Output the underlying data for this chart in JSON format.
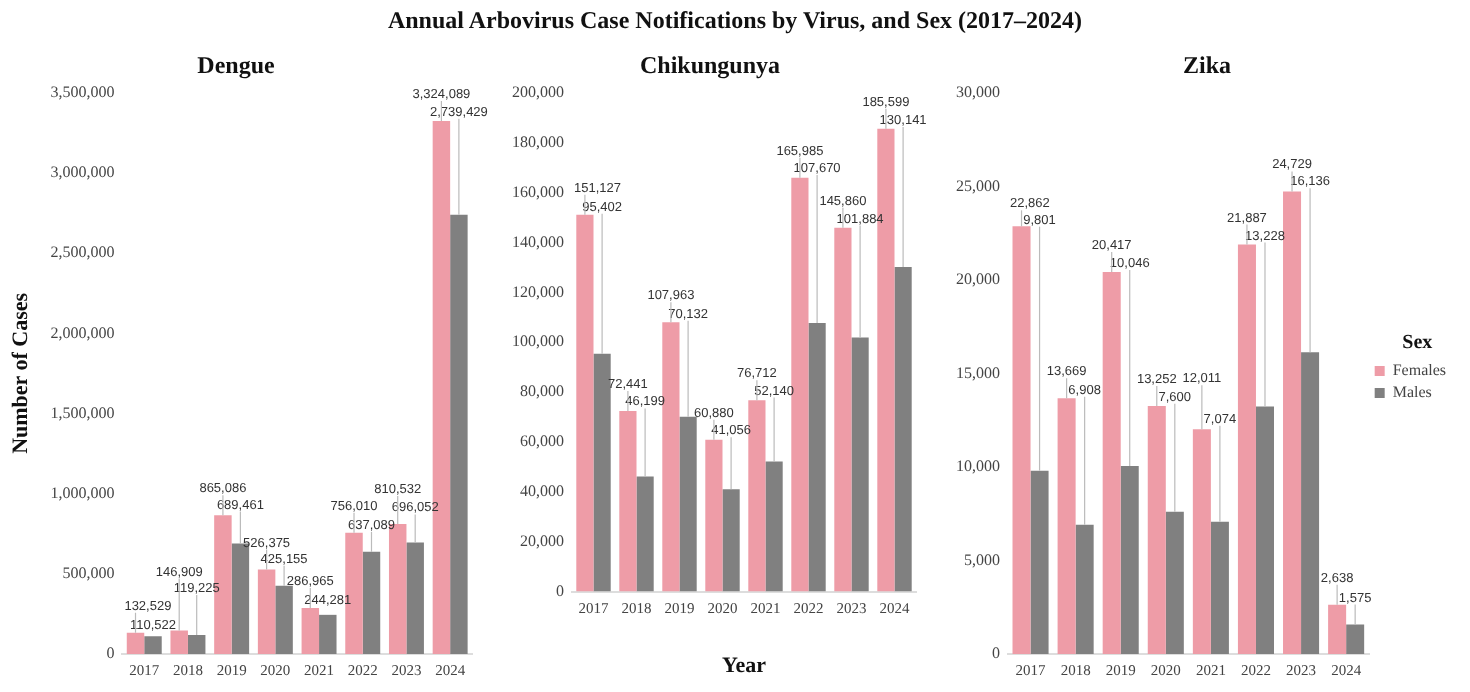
{
  "chart_data": [
    {
      "type": "bar",
      "title": "Annual Arbovirus Case Notifications by Virus, and Sex (2017–2024)",
      "subtitle": "Dengue",
      "ylabel": "Number of Cases",
      "categories": [
        "2017",
        "2018",
        "2019",
        "2020",
        "2021",
        "2022",
        "2023",
        "2024"
      ],
      "series": [
        {
          "color": "#ee9ca7",
          "values": [
            132529,
            146909,
            865086,
            526375,
            286965,
            756010,
            810532,
            3324089
          ],
          "value_labels": [
            "132,529",
            "146,909",
            "865,086",
            "526,375",
            "286,965",
            "756,010",
            "810,532",
            "3,324,089"
          ]
        },
        {
          "color": "#808080",
          "values": [
            110522,
            119225,
            689461,
            425155,
            244281,
            637089,
            696052,
            2739429
          ],
          "value_labels": [
            "110,522",
            "119,225",
            "689,461",
            "425,155",
            "244,281",
            "637,089",
            "696,052",
            "2,739,429"
          ]
        }
      ],
      "ylim": [
        0,
        3500000
      ],
      "yticks": [
        {
          "value": 0,
          "label": "0"
        },
        {
          "value": 500000,
          "label": "500,000"
        },
        {
          "value": 1000000,
          "label": "1,000,000"
        },
        {
          "value": 1500000,
          "label": "1,500,000"
        },
        {
          "value": 2000000,
          "label": "2,000,000"
        },
        {
          "value": 2500000,
          "label": "2,500,000"
        },
        {
          "value": 3000000,
          "label": "3,000,000"
        },
        {
          "value": 3500000,
          "label": "3,500,000"
        }
      ],
      "grid": false,
      "legend": false
    },
    {
      "type": "bar",
      "subtitle": "Chikungunya",
      "xlabel": "Year",
      "categories": [
        "2017",
        "2018",
        "2019",
        "2020",
        "2021",
        "2022",
        "2023",
        "2024"
      ],
      "series": [
        {
          "color": "#ee9ca7",
          "values": [
            151127,
            72441,
            107963,
            60880,
            76712,
            165985,
            145860,
            185599
          ],
          "value_labels": [
            "151,127",
            "72,441",
            "107,963",
            "60,880",
            "76,712",
            "165,985",
            "145,860",
            "185,599"
          ]
        },
        {
          "color": "#808080",
          "values": [
            95402,
            46199,
            70132,
            41056,
            52140,
            107670,
            101884,
            130141
          ],
          "value_labels": [
            "95,402",
            "46,199",
            "70,132",
            "41,056",
            "52,140",
            "107,670",
            "101,884",
            "130,141"
          ]
        }
      ],
      "ylim": [
        0,
        200000
      ],
      "yticks": [
        {
          "value": 0,
          "label": "0"
        },
        {
          "value": 20000,
          "label": "20,000"
        },
        {
          "value": 40000,
          "label": "40,000"
        },
        {
          "value": 60000,
          "label": "60,000"
        },
        {
          "value": 80000,
          "label": "80,000"
        },
        {
          "value": 100000,
          "label": "100,000"
        },
        {
          "value": 120000,
          "label": "120,000"
        },
        {
          "value": 140000,
          "label": "140,000"
        },
        {
          "value": 160000,
          "label": "160,000"
        },
        {
          "value": 180000,
          "label": "180,000"
        },
        {
          "value": 200000,
          "label": "200,000"
        }
      ],
      "grid": false,
      "legend": false
    },
    {
      "type": "bar",
      "subtitle": "Zika",
      "legend_title": "Sex",
      "categories": [
        "2017",
        "2018",
        "2019",
        "2020",
        "2021",
        "2022",
        "2023",
        "2024"
      ],
      "series": [
        {
          "name": "Females",
          "color": "#ee9ca7",
          "values": [
            22862,
            13669,
            20417,
            13252,
            12011,
            21887,
            24729,
            2638
          ],
          "value_labels": [
            "22,862",
            "13,669",
            "20,417",
            "13,252",
            "12,011",
            "21,887",
            "24,729",
            "2,638"
          ]
        },
        {
          "name": "Males",
          "color": "#808080",
          "values": [
            9801,
            6908,
            10046,
            7600,
            7074,
            13228,
            16136,
            1575
          ],
          "value_labels": [
            "9,801",
            "6,908",
            "10,046",
            "7,600",
            "7,074",
            "13,228",
            "16,136",
            "1,575"
          ]
        }
      ],
      "ylim": [
        0,
        30000
      ],
      "yticks": [
        {
          "value": 0,
          "label": "0"
        },
        {
          "value": 5000,
          "label": "5,000"
        },
        {
          "value": 10000,
          "label": "10,000"
        },
        {
          "value": 15000,
          "label": "15,000"
        },
        {
          "value": 20000,
          "label": "20,000"
        },
        {
          "value": 25000,
          "label": "25,000"
        },
        {
          "value": 30000,
          "label": "30,000"
        }
      ],
      "grid": false,
      "legend": "right"
    }
  ]
}
